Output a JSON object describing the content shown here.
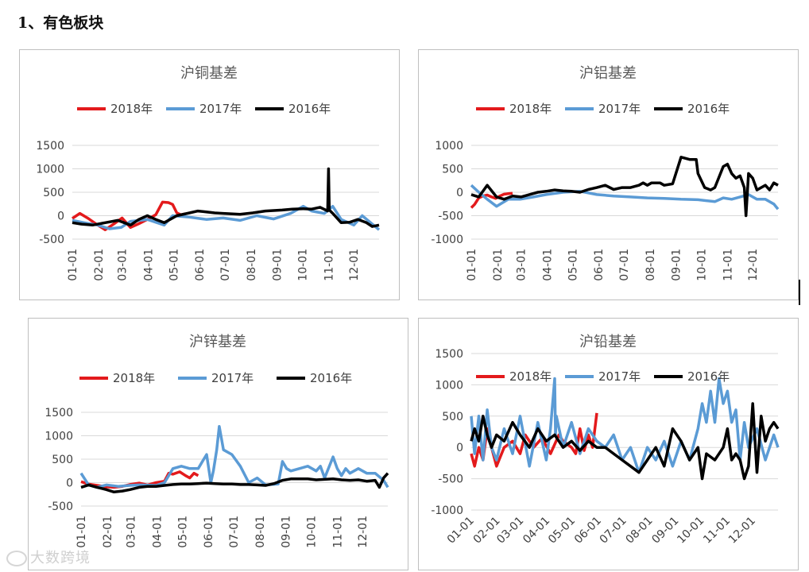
{
  "heading": "1、有色板块",
  "watermark": "大数跨境",
  "colors": {
    "2018年": "#e31a1c",
    "2017年": "#5b9bd5",
    "2016年": "#000000"
  },
  "chart_data": [
    {
      "type": "line",
      "title": "沪铜基差",
      "ylim": [
        -500,
        1500
      ],
      "yticks": [
        "1500",
        "1000",
        "500",
        "0",
        "-500"
      ],
      "ytick_values": [
        1500,
        1000,
        500,
        0,
        -500
      ],
      "x_tick_labels": [
        "01-01",
        "02-01",
        "03-01",
        "04-01",
        "05-01",
        "06-01",
        "07-01",
        "08-01",
        "09-01",
        "10-01",
        "11-01",
        "12-01"
      ],
      "legend": "top",
      "grid": true,
      "series": [
        {
          "name": "2018年",
          "x": [
            1,
            10,
            20,
            31,
            40,
            50,
            60,
            70,
            80,
            90,
            100,
            108,
            115,
            120,
            125,
            130,
            135
          ],
          "y": [
            -60,
            50,
            -60,
            -200,
            -300,
            -180,
            -50,
            -250,
            -170,
            -80,
            20,
            290,
            280,
            240,
            60,
            20,
            40
          ]
        },
        {
          "name": "2017年",
          "x": [
            1,
            15,
            31,
            45,
            59,
            70,
            90,
            110,
            120,
            140,
            160,
            180,
            200,
            220,
            240,
            260,
            275,
            285,
            300,
            310,
            320,
            335,
            345,
            355,
            365
          ],
          "y": [
            -100,
            -150,
            -200,
            -280,
            -250,
            -120,
            -80,
            -200,
            0,
            -30,
            -80,
            -50,
            -100,
            0,
            -70,
            50,
            200,
            100,
            50,
            200,
            -80,
            -200,
            0,
            -150,
            -300
          ]
        },
        {
          "name": "2016年",
          "x": [
            1,
            12,
            25,
            40,
            55,
            70,
            80,
            90,
            100,
            110,
            125,
            140,
            150,
            160,
            170,
            180,
            200,
            215,
            230,
            250,
            262,
            275,
            285,
            295,
            304,
            305,
            306,
            310,
            320,
            330,
            340,
            350,
            357,
            365
          ],
          "y": [
            -150,
            -180,
            -200,
            -150,
            -100,
            -200,
            -80,
            0,
            -80,
            -150,
            0,
            60,
            100,
            80,
            60,
            50,
            30,
            60,
            100,
            120,
            140,
            150,
            140,
            180,
            100,
            1000,
            120,
            50,
            -150,
            -140,
            -80,
            -150,
            -230,
            -200
          ]
        }
      ]
    },
    {
      "type": "line",
      "title": "沪铝基差",
      "ylim": [
        -1000,
        1000
      ],
      "yticks": [
        "1000",
        "500",
        "0",
        "-500",
        "-1000"
      ],
      "ytick_values": [
        1000,
        500,
        0,
        -500,
        -1000
      ],
      "x_tick_labels": [
        "01-01",
        "02-01",
        "03-01",
        "04-01",
        "05-01",
        "06-01",
        "07-01",
        "08-01",
        "09-01",
        "10-01",
        "11-01",
        "12-01"
      ],
      "legend": "top",
      "grid": true,
      "series": [
        {
          "name": "2018年",
          "x": [
            1,
            5,
            10,
            15,
            20,
            25,
            30,
            35,
            40,
            45,
            50
          ],
          "y": [
            -330,
            -260,
            -120,
            -80,
            -60,
            -100,
            -130,
            -80,
            -40,
            -30,
            -20
          ]
        },
        {
          "name": "2017年",
          "x": [
            1,
            10,
            20,
            31,
            45,
            59,
            75,
            90,
            110,
            130,
            150,
            170,
            190,
            210,
            230,
            250,
            270,
            290,
            300,
            310,
            320,
            330,
            340,
            350,
            360,
            365
          ],
          "y": [
            150,
            0,
            -150,
            -300,
            -150,
            -150,
            -100,
            -50,
            0,
            20,
            -50,
            -80,
            -100,
            -120,
            -130,
            -150,
            -160,
            -200,
            -120,
            -150,
            -100,
            -50,
            -150,
            -150,
            -250,
            -360
          ]
        },
        {
          "name": "2016年",
          "x": [
            1,
            10,
            20,
            31,
            40,
            50,
            60,
            70,
            80,
            90,
            100,
            110,
            120,
            130,
            140,
            150,
            160,
            170,
            180,
            190,
            200,
            205,
            210,
            215,
            220,
            225,
            230,
            240,
            250,
            260,
            268,
            270,
            278,
            285,
            290,
            300,
            305,
            310,
            315,
            320,
            325,
            327,
            330,
            335,
            340,
            345,
            350,
            355,
            360,
            365
          ],
          "y": [
            -50,
            -100,
            150,
            -100,
            -150,
            -80,
            -100,
            -50,
            0,
            20,
            50,
            30,
            20,
            0,
            60,
            100,
            150,
            60,
            100,
            100,
            150,
            200,
            150,
            200,
            200,
            200,
            150,
            180,
            750,
            700,
            700,
            400,
            100,
            50,
            100,
            550,
            600,
            400,
            300,
            350,
            100,
            -500,
            400,
            300,
            50,
            100,
            150,
            50,
            200,
            150
          ]
        }
      ]
    },
    {
      "type": "line",
      "title": "沪锌基差",
      "ylim": [
        -500,
        1500
      ],
      "yticks": [
        "1500",
        "1000",
        "500",
        "0",
        "-500"
      ],
      "ytick_values": [
        1500,
        1000,
        500,
        0,
        -500
      ],
      "x_tick_labels": [
        "01-01",
        "02-01",
        "03-01",
        "04-01",
        "05-01",
        "06-01",
        "07-01",
        "08-01",
        "09-01",
        "10-01",
        "11-01",
        "12-01"
      ],
      "legend": "top",
      "grid": true,
      "series": [
        {
          "name": "2018年",
          "x": [
            1,
            10,
            20,
            31,
            40,
            50,
            59,
            70,
            80,
            90,
            100,
            105,
            110,
            118,
            125,
            130,
            135,
            140
          ],
          "y": [
            20,
            -30,
            -60,
            -90,
            -100,
            -80,
            -40,
            -10,
            -50,
            0,
            30,
            200,
            180,
            230,
            150,
            100,
            200,
            150
          ]
        },
        {
          "name": "2017年",
          "x": [
            1,
            10,
            20,
            31,
            45,
            59,
            70,
            90,
            100,
            110,
            120,
            130,
            140,
            145,
            150,
            155,
            158,
            162,
            165,
            170,
            180,
            190,
            200,
            210,
            220,
            235,
            240,
            245,
            250,
            260,
            270,
            280,
            285,
            290,
            300,
            305,
            310,
            315,
            320,
            330,
            340,
            350,
            360,
            365
          ],
          "y": [
            200,
            -50,
            -100,
            -50,
            -80,
            -60,
            -50,
            -60,
            0,
            300,
            350,
            300,
            300,
            450,
            600,
            0,
            250,
            700,
            1200,
            700,
            600,
            350,
            0,
            100,
            -50,
            -30,
            450,
            300,
            250,
            300,
            350,
            250,
            350,
            100,
            550,
            300,
            150,
            300,
            200,
            300,
            200,
            200,
            50,
            -100
          ]
        },
        {
          "name": "2016年",
          "x": [
            1,
            10,
            20,
            31,
            40,
            50,
            59,
            70,
            80,
            90,
            100,
            110,
            120,
            130,
            140,
            150,
            160,
            170,
            180,
            190,
            200,
            210,
            220,
            230,
            240,
            250,
            260,
            270,
            280,
            290,
            300,
            310,
            320,
            330,
            340,
            350,
            355,
            360,
            365
          ],
          "y": [
            -100,
            -50,
            -100,
            -150,
            -200,
            -180,
            -150,
            -100,
            -80,
            -80,
            -60,
            -40,
            -30,
            -30,
            -20,
            -10,
            -20,
            -30,
            -30,
            -40,
            -40,
            -50,
            -60,
            -20,
            50,
            80,
            80,
            80,
            60,
            70,
            80,
            60,
            50,
            60,
            30,
            50,
            -100,
            100,
            200
          ]
        }
      ]
    },
    {
      "type": "line",
      "title": "沪铅基差",
      "ylim": [
        -1000,
        1500
      ],
      "yticks": [
        "1500",
        "1000",
        "500",
        "0",
        "-500",
        "-1000"
      ],
      "ytick_values": [
        1500,
        1000,
        500,
        0,
        -500,
        -1000
      ],
      "x_tick_labels": [
        "01-01",
        "02-01",
        "03-01",
        "04-01",
        "05-01",
        "06-01",
        "07-01",
        "08-01",
        "09-01",
        "10-01",
        "11-01",
        "12-01"
      ],
      "legend": "top",
      "grid": true,
      "series": [
        {
          "name": "2018年",
          "x": [
            1,
            5,
            10,
            15,
            20,
            25,
            31,
            40,
            50,
            59,
            65,
            75,
            85,
            95,
            105,
            110,
            120,
            125,
            130,
            135,
            140,
            145,
            150
          ],
          "y": [
            -100,
            -300,
            0,
            -200,
            300,
            0,
            -300,
            0,
            100,
            -100,
            200,
            0,
            150,
            -100,
            200,
            100,
            0,
            -100,
            300,
            -50,
            200,
            0,
            550
          ]
        },
        {
          "name": "2017年",
          "x": [
            1,
            5,
            10,
            15,
            20,
            25,
            31,
            40,
            50,
            59,
            70,
            80,
            90,
            95,
            100,
            101,
            102,
            110,
            120,
            130,
            140,
            150,
            160,
            170,
            180,
            190,
            200,
            210,
            220,
            230,
            240,
            250,
            260,
            270,
            275,
            280,
            285,
            290,
            295,
            300,
            305,
            310,
            315,
            320,
            325,
            330,
            340,
            350,
            360,
            365
          ],
          "y": [
            500,
            -100,
            500,
            -200,
            600,
            0,
            -200,
            300,
            -100,
            500,
            -300,
            400,
            -200,
            300,
            1100,
            200,
            500,
            0,
            400,
            -100,
            300,
            100,
            0,
            200,
            -200,
            0,
            -400,
            0,
            -200,
            100,
            -300,
            100,
            -200,
            300,
            700,
            400,
            900,
            400,
            1100,
            700,
            900,
            400,
            600,
            -200,
            400,
            0,
            300,
            -200,
            200,
            0
          ]
        },
        {
          "name": "2016年",
          "x": [
            1,
            5,
            10,
            15,
            20,
            25,
            31,
            40,
            50,
            59,
            70,
            80,
            90,
            100,
            110,
            120,
            130,
            140,
            150,
            160,
            170,
            180,
            190,
            200,
            210,
            220,
            230,
            240,
            250,
            260,
            270,
            275,
            280,
            290,
            300,
            305,
            310,
            315,
            320,
            325,
            330,
            335,
            340,
            345,
            350,
            355,
            360,
            365
          ],
          "y": [
            100,
            300,
            100,
            500,
            200,
            0,
            200,
            100,
            400,
            200,
            0,
            300,
            100,
            200,
            0,
            100,
            -50,
            100,
            0,
            0,
            -100,
            -200,
            -300,
            -400,
            -200,
            0,
            -300,
            300,
            100,
            -200,
            0,
            -500,
            -100,
            -200,
            0,
            300,
            -200,
            -100,
            -200,
            -500,
            -300,
            700,
            -400,
            500,
            100,
            300,
            400,
            300
          ]
        }
      ]
    }
  ]
}
